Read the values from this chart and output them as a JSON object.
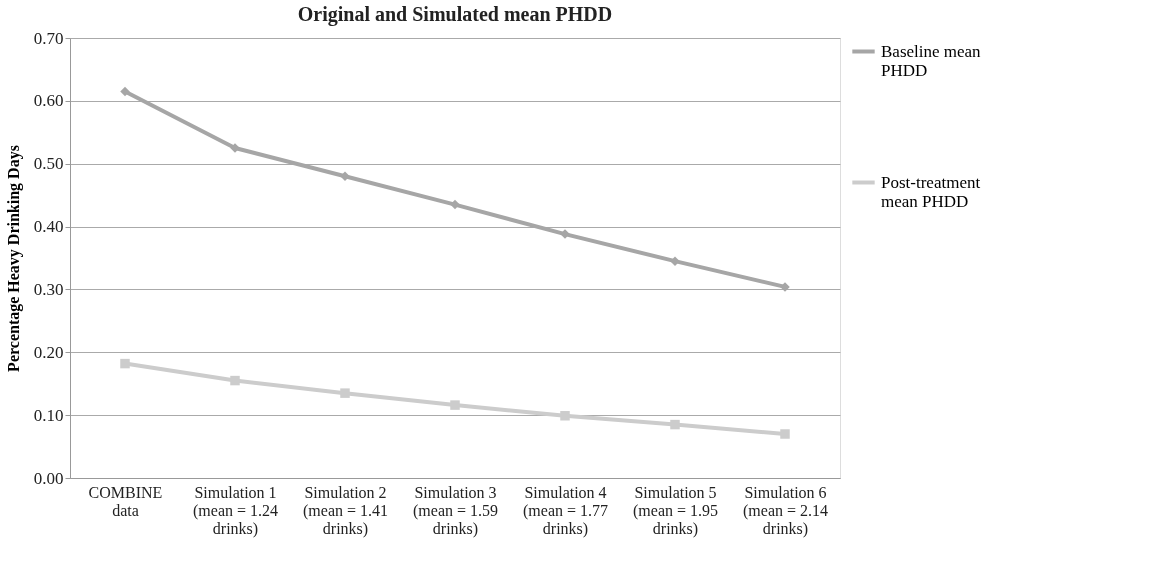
{
  "chart_data": {
    "type": "line",
    "title": "Original and Simulated mean PHDD",
    "ylabel": "Percentage Heavy Drinking Days",
    "categories": [
      "COMBINE\ndata",
      "Simulation 1\n(mean = 1.24\ndrinks)",
      "Simulation 2\n(mean = 1.41\ndrinks)",
      "Simulation 3\n(mean = 1.59\ndrinks)",
      "Simulation 4\n(mean = 1.77\ndrinks)",
      "Simulation 5\n(mean = 1.95\ndrinks)",
      "Simulation 6\n(mean = 2.14\ndrinks)"
    ],
    "series": [
      {
        "name": "Baseline mean\nPHDD",
        "color": "#a6a6a6",
        "marker": "diamond",
        "values": [
          0.615,
          0.525,
          0.48,
          0.435,
          0.388,
          0.345,
          0.304
        ]
      },
      {
        "name": "Post-treatment\nmean PHDD",
        "color": "#cccccc",
        "marker": "square",
        "values": [
          0.182,
          0.155,
          0.135,
          0.116,
          0.099,
          0.085,
          0.07
        ]
      }
    ],
    "ylim": [
      0,
      0.7
    ],
    "yticks": [
      {
        "value": 0,
        "label": "0.00"
      },
      {
        "value": 0.1,
        "label": "0.10"
      },
      {
        "value": 0.2,
        "label": "0.20"
      },
      {
        "value": 0.3,
        "label": "0.30"
      },
      {
        "value": 0.4,
        "label": "0.40"
      },
      {
        "value": 0.5,
        "label": "0.50"
      },
      {
        "value": 0.6,
        "label": "0.60"
      },
      {
        "value": 0.7,
        "label": "0.70"
      }
    ],
    "grid": "y",
    "legend": "right",
    "line_style": "solid"
  }
}
